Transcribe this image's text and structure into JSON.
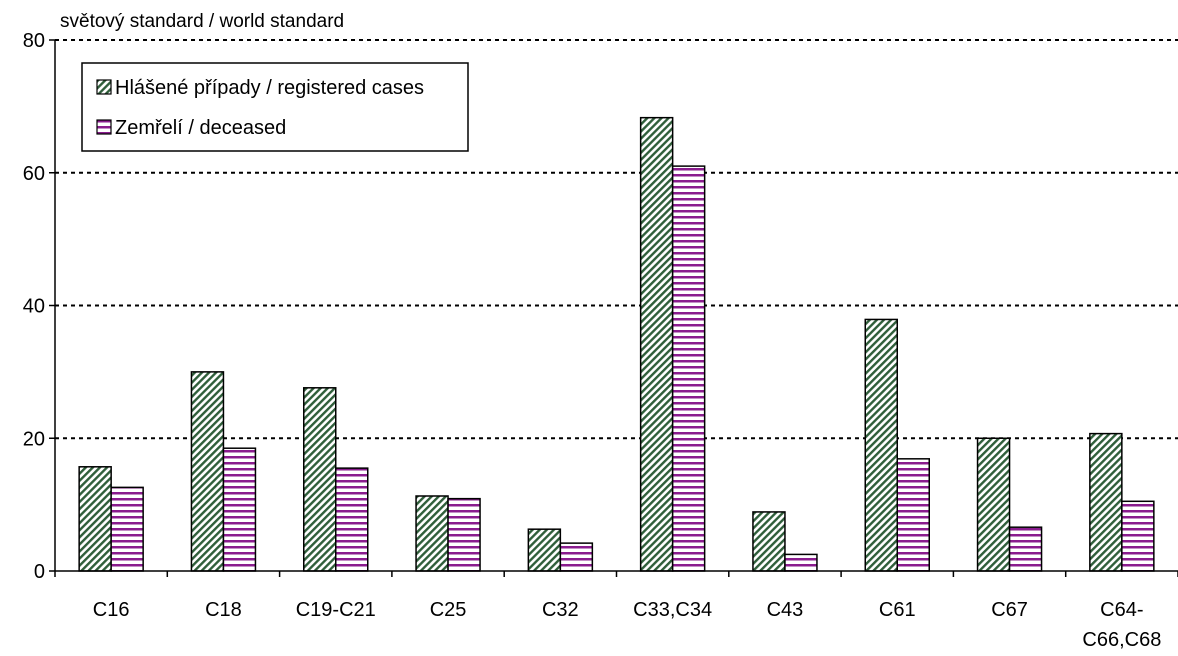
{
  "chart_data": {
    "type": "bar",
    "unit_label": "světový standard / world standard",
    "categories": [
      [
        "C16"
      ],
      [
        "C18"
      ],
      [
        "C19-C21"
      ],
      [
        "C25"
      ],
      [
        "C32"
      ],
      [
        "C33,C34"
      ],
      [
        "C43"
      ],
      [
        "C61"
      ],
      [
        "C67"
      ],
      [
        "C64-",
        "C66,C68"
      ]
    ],
    "series": [
      {
        "name": "Hlášené případy / registered cases",
        "values": [
          15.7,
          30.0,
          27.6,
          11.3,
          6.3,
          68.3,
          8.9,
          37.9,
          20.0,
          20.7
        ],
        "pattern": "diagonal-hatch",
        "color": "#2f5e3a"
      },
      {
        "name": "Zemřelí / deceased",
        "values": [
          12.6,
          18.5,
          15.5,
          10.9,
          4.2,
          61.0,
          2.5,
          16.9,
          6.6,
          10.5
        ],
        "pattern": "horizontal-stripes",
        "color": "#8a1c8e"
      }
    ],
    "ylim": [
      0,
      80
    ],
    "yticks": [
      0,
      20,
      40,
      60,
      80
    ],
    "grid": "dotted-horizontal",
    "legend_position": "top-left"
  }
}
